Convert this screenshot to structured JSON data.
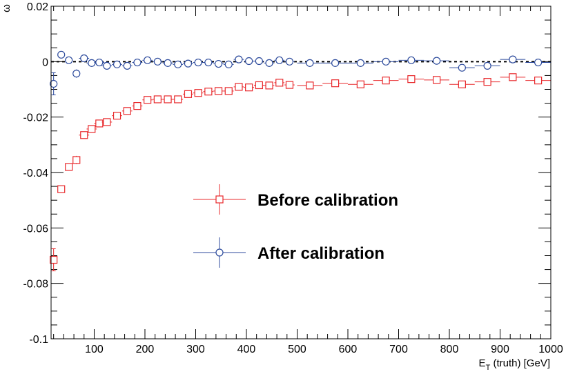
{
  "chart_data": {
    "type": "scatter",
    "title": "",
    "ylabel": "ω",
    "xlabel_main": "E",
    "xlabel_sub": "T",
    "xlabel_rest": " (truth) [GeV]",
    "xlim": [
      15,
      1000
    ],
    "ylim": [
      -0.1,
      0.02
    ],
    "x_ticks": [
      100,
      200,
      300,
      400,
      500,
      600,
      700,
      800,
      900,
      1000
    ],
    "y_ticks": [
      0.02,
      0,
      -0.02,
      -0.04,
      -0.06,
      -0.08,
      -0.1
    ],
    "y_tick_labels": [
      "0.02",
      "0",
      "-0.02",
      "-0.04",
      "-0.06",
      "-0.08",
      "-0.1"
    ],
    "x_tick_labels": [
      "100",
      "200",
      "300",
      "400",
      "500",
      "600",
      "700",
      "800",
      "900",
      "1000"
    ],
    "reference_line": 0,
    "legend_position": "center",
    "series": [
      {
        "name": "Before calibration",
        "color": "#e8282b",
        "marker": "open-square",
        "points": [
          {
            "x": 20,
            "y": -0.0715,
            "xerr": 5,
            "yerr": 0.004
          },
          {
            "x": 35,
            "y": -0.046,
            "xerr": 5,
            "yerr": 0.001
          },
          {
            "x": 50,
            "y": -0.038,
            "xerr": 5,
            "yerr": 0.001
          },
          {
            "x": 65,
            "y": -0.0355,
            "xerr": 5,
            "yerr": 0.0015
          },
          {
            "x": 80,
            "y": -0.0265,
            "xerr": 10,
            "yerr": 0.001
          },
          {
            "x": 95,
            "y": -0.0243,
            "xerr": 10,
            "yerr": 0.001
          },
          {
            "x": 110,
            "y": -0.0223,
            "xerr": 10,
            "yerr": 0.0008
          },
          {
            "x": 125,
            "y": -0.0218,
            "xerr": 10,
            "yerr": 0.0008
          },
          {
            "x": 145,
            "y": -0.0195,
            "xerr": 10,
            "yerr": 0.0006
          },
          {
            "x": 165,
            "y": -0.0178,
            "xerr": 10,
            "yerr": 0.0006
          },
          {
            "x": 185,
            "y": -0.016,
            "xerr": 10,
            "yerr": 0.0005
          },
          {
            "x": 205,
            "y": -0.0138,
            "xerr": 10,
            "yerr": 0.0005
          },
          {
            "x": 225,
            "y": -0.0136,
            "xerr": 10,
            "yerr": 0.0005
          },
          {
            "x": 245,
            "y": -0.0136,
            "xerr": 10,
            "yerr": 0.0005
          },
          {
            "x": 265,
            "y": -0.0136,
            "xerr": 10,
            "yerr": 0.0005
          },
          {
            "x": 285,
            "y": -0.0117,
            "xerr": 10,
            "yerr": 0.0005
          },
          {
            "x": 305,
            "y": -0.0113,
            "xerr": 10,
            "yerr": 0.0005
          },
          {
            "x": 325,
            "y": -0.0108,
            "xerr": 10,
            "yerr": 0.0005
          },
          {
            "x": 345,
            "y": -0.0106,
            "xerr": 10,
            "yerr": 0.0005
          },
          {
            "x": 365,
            "y": -0.0106,
            "xerr": 10,
            "yerr": 0.0005
          },
          {
            "x": 385,
            "y": -0.0091,
            "xerr": 10,
            "yerr": 0.0005
          },
          {
            "x": 405,
            "y": -0.0093,
            "xerr": 10,
            "yerr": 0.0005
          },
          {
            "x": 425,
            "y": -0.0085,
            "xerr": 10,
            "yerr": 0.0005
          },
          {
            "x": 445,
            "y": -0.0086,
            "xerr": 10,
            "yerr": 0.0005
          },
          {
            "x": 465,
            "y": -0.0076,
            "xerr": 10,
            "yerr": 0.0005
          },
          {
            "x": 485,
            "y": -0.0084,
            "xerr": 10,
            "yerr": 0.0005
          },
          {
            "x": 525,
            "y": -0.0086,
            "xerr": 25,
            "yerr": 0.0006
          },
          {
            "x": 575,
            "y": -0.0078,
            "xerr": 25,
            "yerr": 0.0006
          },
          {
            "x": 625,
            "y": -0.0082,
            "xerr": 25,
            "yerr": 0.0006
          },
          {
            "x": 675,
            "y": -0.0068,
            "xerr": 25,
            "yerr": 0.0006
          },
          {
            "x": 725,
            "y": -0.0063,
            "xerr": 25,
            "yerr": 0.0006
          },
          {
            "x": 775,
            "y": -0.0066,
            "xerr": 25,
            "yerr": 0.0006
          },
          {
            "x": 825,
            "y": -0.0082,
            "xerr": 25,
            "yerr": 0.0006
          },
          {
            "x": 875,
            "y": -0.0073,
            "xerr": 25,
            "yerr": 0.0006
          },
          {
            "x": 925,
            "y": -0.0056,
            "xerr": 25,
            "yerr": 0.0006
          },
          {
            "x": 975,
            "y": -0.0068,
            "xerr": 25,
            "yerr": 0.0006
          }
        ]
      },
      {
        "name": "After calibration",
        "color": "#2c4a9c",
        "marker": "open-circle",
        "points": [
          {
            "x": 20,
            "y": -0.008,
            "xerr": 5,
            "yerr": 0.004
          },
          {
            "x": 35,
            "y": 0.0025,
            "xerr": 5,
            "yerr": 0.001
          },
          {
            "x": 50,
            "y": 0.0005,
            "xerr": 5,
            "yerr": 0.001
          },
          {
            "x": 65,
            "y": -0.0043,
            "xerr": 5,
            "yerr": 0.0015
          },
          {
            "x": 80,
            "y": 0.0012,
            "xerr": 10,
            "yerr": 0.001
          },
          {
            "x": 95,
            "y": -0.0005,
            "xerr": 10,
            "yerr": 0.0008
          },
          {
            "x": 110,
            "y": -0.0003,
            "xerr": 10,
            "yerr": 0.0008
          },
          {
            "x": 125,
            "y": -0.0015,
            "xerr": 10,
            "yerr": 0.0008
          },
          {
            "x": 145,
            "y": -0.001,
            "xerr": 10,
            "yerr": 0.0006
          },
          {
            "x": 165,
            "y": -0.0015,
            "xerr": 10,
            "yerr": 0.0006
          },
          {
            "x": 185,
            "y": -0.0003,
            "xerr": 10,
            "yerr": 0.0005
          },
          {
            "x": 205,
            "y": 0.0005,
            "xerr": 10,
            "yerr": 0.0005
          },
          {
            "x": 225,
            "y": 0.0,
            "xerr": 10,
            "yerr": 0.0005
          },
          {
            "x": 245,
            "y": -0.0005,
            "xerr": 10,
            "yerr": 0.0005
          },
          {
            "x": 265,
            "y": -0.001,
            "xerr": 10,
            "yerr": 0.0005
          },
          {
            "x": 285,
            "y": -0.0007,
            "xerr": 10,
            "yerr": 0.0005
          },
          {
            "x": 305,
            "y": -0.0003,
            "xerr": 10,
            "yerr": 0.0005
          },
          {
            "x": 325,
            "y": -0.0003,
            "xerr": 10,
            "yerr": 0.0005
          },
          {
            "x": 345,
            "y": -0.0008,
            "xerr": 10,
            "yerr": 0.0005
          },
          {
            "x": 365,
            "y": -0.001,
            "xerr": 10,
            "yerr": 0.0005
          },
          {
            "x": 385,
            "y": 0.0008,
            "xerr": 10,
            "yerr": 0.0005
          },
          {
            "x": 405,
            "y": 0.0002,
            "xerr": 10,
            "yerr": 0.0005
          },
          {
            "x": 425,
            "y": 0.0002,
            "xerr": 10,
            "yerr": 0.0005
          },
          {
            "x": 445,
            "y": -0.0005,
            "xerr": 10,
            "yerr": 0.0005
          },
          {
            "x": 465,
            "y": 0.0005,
            "xerr": 10,
            "yerr": 0.0005
          },
          {
            "x": 485,
            "y": 0.0,
            "xerr": 10,
            "yerr": 0.0005
          },
          {
            "x": 525,
            "y": -0.0005,
            "xerr": 25,
            "yerr": 0.0006
          },
          {
            "x": 575,
            "y": -0.0005,
            "xerr": 25,
            "yerr": 0.0006
          },
          {
            "x": 625,
            "y": -0.0005,
            "xerr": 25,
            "yerr": 0.0006
          },
          {
            "x": 675,
            "y": 0.0,
            "xerr": 25,
            "yerr": 0.0006
          },
          {
            "x": 725,
            "y": 0.0005,
            "xerr": 25,
            "yerr": 0.0006
          },
          {
            "x": 775,
            "y": 0.0003,
            "xerr": 25,
            "yerr": 0.0006
          },
          {
            "x": 825,
            "y": -0.0022,
            "xerr": 25,
            "yerr": 0.0006
          },
          {
            "x": 875,
            "y": -0.0015,
            "xerr": 25,
            "yerr": 0.0006
          },
          {
            "x": 925,
            "y": 0.0008,
            "xerr": 25,
            "yerr": 0.0006
          },
          {
            "x": 975,
            "y": -0.0003,
            "xerr": 25,
            "yerr": 0.0006
          }
        ]
      }
    ]
  }
}
